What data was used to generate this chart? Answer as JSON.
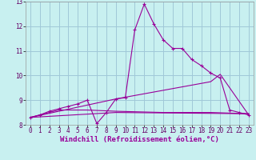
{
  "background_color": "#c8f0f0",
  "grid_color": "#a0c8d8",
  "line_color": "#990099",
  "xlim": [
    -0.5,
    23.5
  ],
  "ylim": [
    8.0,
    13.0
  ],
  "yticks": [
    8,
    9,
    10,
    11,
    12,
    13
  ],
  "xticks": [
    0,
    1,
    2,
    3,
    4,
    5,
    6,
    7,
    8,
    9,
    10,
    11,
    12,
    13,
    14,
    15,
    16,
    17,
    18,
    19,
    20,
    21,
    22,
    23
  ],
  "xlabel": "Windchill (Refroidissement éolien,°C)",
  "xlabel_fontsize": 6.5,
  "tick_fontsize": 5.5,
  "line1_x": [
    0,
    1,
    2,
    3,
    4,
    5,
    6,
    7,
    8,
    9,
    10,
    11,
    12,
    13,
    14,
    15,
    16,
    17,
    18,
    19,
    20,
    21,
    22,
    23
  ],
  "line1_y": [
    8.3,
    8.4,
    8.55,
    8.65,
    8.75,
    8.85,
    9.0,
    8.05,
    8.5,
    9.05,
    9.1,
    11.85,
    12.9,
    12.1,
    11.45,
    11.1,
    11.1,
    10.65,
    10.4,
    10.1,
    9.9,
    8.6,
    8.5,
    8.4
  ],
  "line2_x": [
    0,
    3,
    6,
    9,
    14,
    19,
    23
  ],
  "line2_y": [
    8.3,
    8.6,
    8.6,
    8.55,
    8.5,
    8.5,
    8.45
  ],
  "line3_x": [
    0,
    9,
    23
  ],
  "line3_y": [
    8.3,
    8.5,
    8.45
  ],
  "line4_x": [
    0,
    9,
    19,
    20,
    23
  ],
  "line4_y": [
    8.3,
    9.05,
    9.75,
    10.05,
    8.4
  ]
}
